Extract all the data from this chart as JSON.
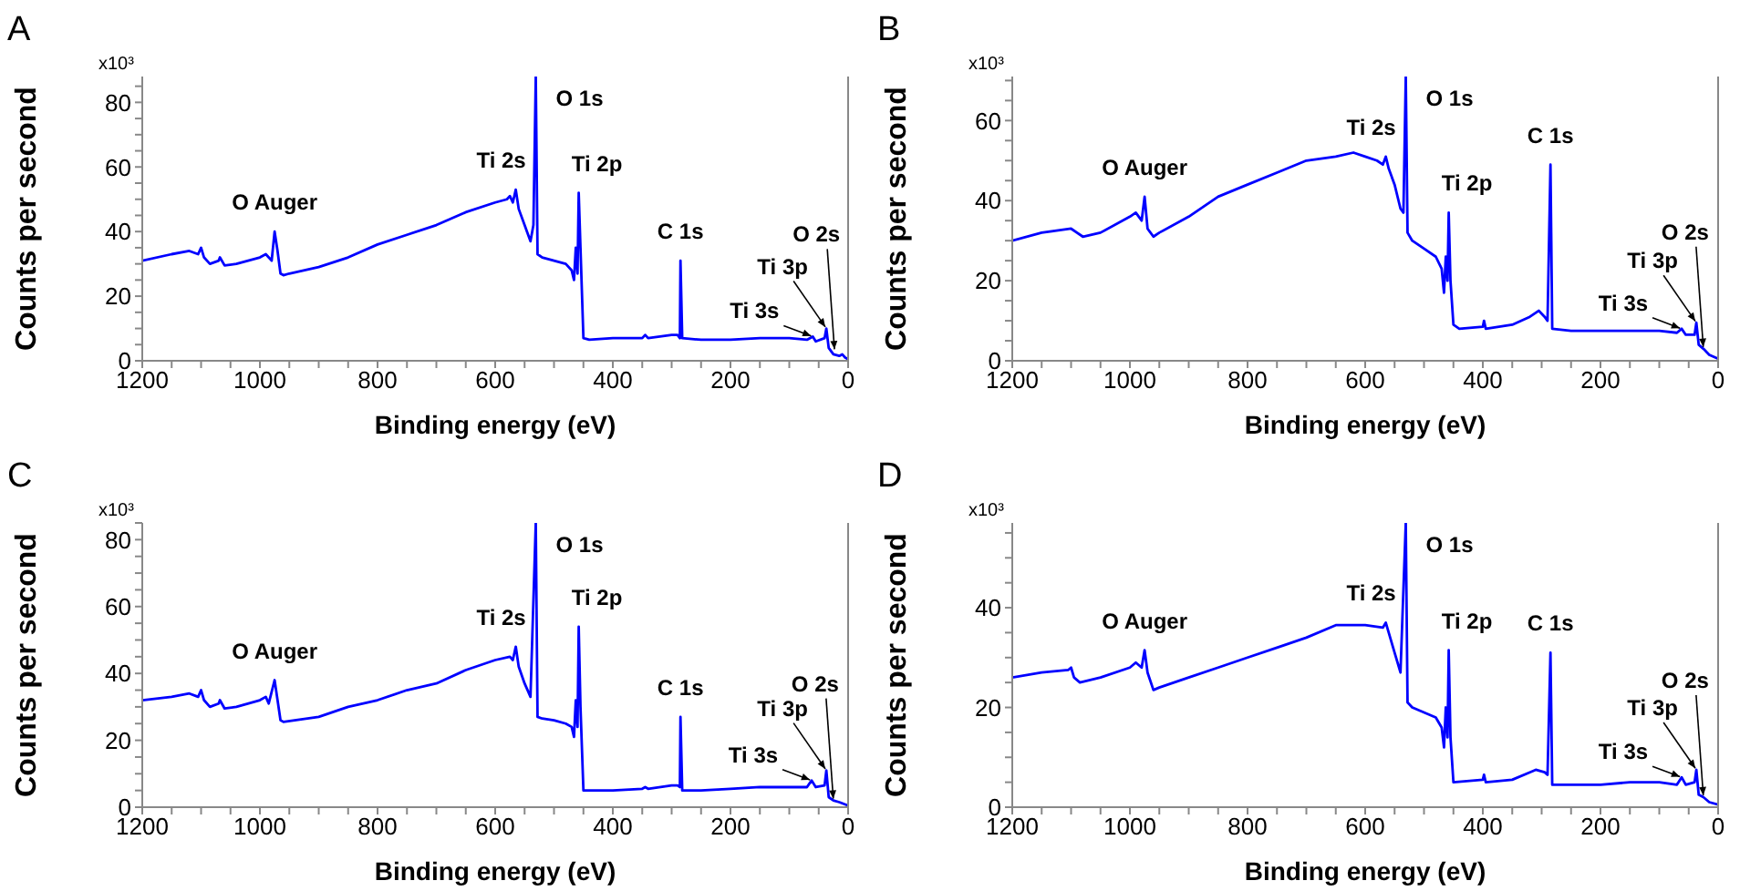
{
  "chart_data": [
    {
      "type": "line",
      "title": "A",
      "xlabel": "Binding energy (eV)",
      "ylabel": "Counts per second",
      "color": "#0000ff",
      "marker": "none",
      "line_style": "solid",
      "xlim": [
        1200,
        0
      ],
      "ylim": [
        0,
        88
      ],
      "xticks": [
        1200,
        {
          "value": 1150,
          "label": null
        },
        {
          "value": 1100,
          "label": null
        },
        {
          "value": 1050,
          "label": null
        },
        1000,
        {
          "value": 950,
          "label": null
        },
        {
          "value": 900,
          "label": null
        },
        {
          "value": 850,
          "label": null
        },
        800,
        {
          "value": 750,
          "label": null
        },
        {
          "value": 700,
          "label": null
        },
        {
          "value": 650,
          "label": null
        },
        600,
        {
          "value": 550,
          "label": null
        },
        {
          "value": 500,
          "label": null
        },
        {
          "value": 450,
          "label": null
        },
        400,
        {
          "value": 350,
          "label": null
        },
        {
          "value": 300,
          "label": null
        },
        {
          "value": 250,
          "label": null
        },
        200,
        {
          "value": 150,
          "label": null
        },
        {
          "value": 100,
          "label": null
        },
        {
          "value": 50,
          "label": null
        },
        0
      ],
      "yticks": [
        0,
        {
          "value": 5,
          "label": null
        },
        {
          "value": 10,
          "label": null
        },
        {
          "value": 15,
          "label": null
        },
        20,
        {
          "value": 25,
          "label": null
        },
        {
          "value": 30,
          "label": null
        },
        {
          "value": 35,
          "label": null
        },
        40,
        {
          "value": 45,
          "label": null
        },
        {
          "value": 50,
          "label": null
        },
        {
          "value": 55,
          "label": null
        },
        60,
        {
          "value": 65,
          "label": null
        },
        {
          "value": 70,
          "label": null
        },
        {
          "value": 75,
          "label": null
        },
        80,
        {
          "value": 85,
          "label": null
        }
      ],
      "x": [
        1200,
        1150,
        1120,
        1105,
        1100,
        1095,
        1085,
        1070,
        1068,
        1060,
        1040,
        1000,
        990,
        985,
        980,
        975,
        970,
        965,
        960,
        950,
        900,
        850,
        800,
        750,
        700,
        650,
        600,
        580,
        575,
        570,
        565,
        560,
        550,
        540,
        535,
        531,
        528,
        520,
        500,
        480,
        470,
        466,
        463,
        460,
        458,
        455,
        450,
        440,
        400,
        350,
        345,
        340,
        300,
        290,
        286,
        285,
        282,
        250,
        200,
        150,
        100,
        70,
        60,
        55,
        40,
        37,
        33,
        25,
        15,
        10,
        5,
        0
      ],
      "values": [
        31,
        33,
        34,
        33,
        35,
        32,
        30,
        31,
        32,
        29.5,
        30,
        32,
        33,
        32,
        31,
        40,
        34,
        27,
        26.5,
        27,
        29,
        32,
        36,
        39,
        42,
        46,
        49,
        50,
        51,
        49,
        53,
        47,
        42,
        37,
        42,
        88,
        33,
        32,
        31,
        30,
        28,
        25,
        35,
        27,
        52,
        35,
        7,
        6.5,
        7,
        7,
        8,
        7,
        8,
        8,
        7,
        31,
        7,
        6.5,
        6.5,
        7,
        7,
        6.5,
        7.5,
        6,
        7,
        10,
        4,
        2,
        1.5,
        2,
        1,
        0.5
      ],
      "annotations": [
        "x10³",
        {
          "text": "O Auger",
          "x": 975,
          "y": 40
        },
        {
          "text": "Ti 2s",
          "x": 565,
          "y": 53
        },
        {
          "text": "O 1s",
          "x": 531,
          "y": 88
        },
        {
          "text": "Ti 2p",
          "x": 458,
          "y": 52
        },
        {
          "text": "C 1s",
          "x": 285,
          "y": 31
        },
        {
          "text": "Ti 3s",
          "x": 60,
          "y": 7.5
        },
        {
          "text": "Ti 3p",
          "x": 37,
          "y": 10
        },
        {
          "text": "O 2s",
          "x": 23,
          "y": 3
        }
      ]
    },
    {
      "type": "line",
      "title": "B",
      "xlabel": "Binding energy (eV)",
      "ylabel": "Counts per second",
      "color": "#0000ff",
      "marker": "none",
      "line_style": "solid",
      "xlim": [
        1200,
        0
      ],
      "ylim": [
        0,
        71
      ],
      "xticks": [
        1200,
        {
          "value": 1150,
          "label": null
        },
        {
          "value": 1100,
          "label": null
        },
        {
          "value": 1050,
          "label": null
        },
        1000,
        {
          "value": 950,
          "label": null
        },
        {
          "value": 900,
          "label": null
        },
        {
          "value": 850,
          "label": null
        },
        800,
        {
          "value": 750,
          "label": null
        },
        {
          "value": 700,
          "label": null
        },
        {
          "value": 650,
          "label": null
        },
        600,
        {
          "value": 550,
          "label": null
        },
        {
          "value": 500,
          "label": null
        },
        {
          "value": 450,
          "label": null
        },
        400,
        {
          "value": 350,
          "label": null
        },
        {
          "value": 300,
          "label": null
        },
        {
          "value": 250,
          "label": null
        },
        200,
        {
          "value": 150,
          "label": null
        },
        {
          "value": 100,
          "label": null
        },
        {
          "value": 50,
          "label": null
        },
        0
      ],
      "yticks": [
        0,
        {
          "value": 5,
          "label": null
        },
        {
          "value": 10,
          "label": null
        },
        {
          "value": 15,
          "label": null
        },
        20,
        {
          "value": 25,
          "label": null
        },
        {
          "value": 30,
          "label": null
        },
        {
          "value": 35,
          "label": null
        },
        40,
        {
          "value": 45,
          "label": null
        },
        {
          "value": 50,
          "label": null
        },
        {
          "value": 55,
          "label": null
        },
        60,
        {
          "value": 65,
          "label": null
        },
        {
          "value": 70,
          "label": null
        }
      ],
      "x": [
        1200,
        1150,
        1100,
        1080,
        1050,
        1000,
        990,
        980,
        975,
        970,
        960,
        950,
        900,
        850,
        800,
        750,
        700,
        650,
        620,
        600,
        580,
        570,
        565,
        560,
        550,
        540,
        535,
        531,
        528,
        520,
        500,
        480,
        470,
        466,
        463,
        460,
        458,
        455,
        450,
        440,
        400,
        398,
        395,
        350,
        320,
        305,
        295,
        290,
        285,
        282,
        250,
        200,
        150,
        100,
        70,
        62,
        55,
        40,
        37,
        33,
        25,
        15,
        0
      ],
      "values": [
        30,
        32,
        33,
        31,
        32,
        36,
        37,
        35,
        41,
        33,
        31,
        32,
        36,
        41,
        44,
        47,
        50,
        51,
        52,
        51,
        50,
        49,
        51,
        48,
        44,
        38,
        37,
        71,
        32,
        30,
        28,
        26,
        23,
        17,
        26,
        20,
        37,
        20,
        9,
        8,
        8.5,
        10,
        8,
        9,
        11,
        12.5,
        11,
        10,
        49,
        8,
        7.5,
        7.5,
        7.5,
        7.5,
        7,
        8,
        6.5,
        6.5,
        9.5,
        4,
        3,
        1.5,
        0.5
      ],
      "annotations": [
        "x10³",
        {
          "text": "O Auger",
          "x": 975,
          "y": 41
        },
        {
          "text": "Ti 2s",
          "x": 565,
          "y": 51
        },
        {
          "text": "O 1s",
          "x": 531,
          "y": 71
        },
        {
          "text": "Ti 2p",
          "x": 458,
          "y": 37
        },
        {
          "text": "C 1s",
          "x": 285,
          "y": 49
        },
        {
          "text": "Ti 3s",
          "x": 62,
          "y": 8
        },
        {
          "text": "Ti 3p",
          "x": 37,
          "y": 9.5
        },
        {
          "text": "O 2s",
          "x": 25,
          "y": 3
        }
      ]
    },
    {
      "type": "line",
      "title": "C",
      "xlabel": "Binding energy (eV)",
      "ylabel": "Counts per second",
      "color": "#0000ff",
      "marker": "none",
      "line_style": "solid",
      "xlim": [
        1200,
        0
      ],
      "ylim": [
        0,
        85
      ],
      "xticks": [
        1200,
        {
          "value": 1150,
          "label": null
        },
        {
          "value": 1100,
          "label": null
        },
        {
          "value": 1050,
          "label": null
        },
        1000,
        {
          "value": 950,
          "label": null
        },
        {
          "value": 900,
          "label": null
        },
        {
          "value": 850,
          "label": null
        },
        800,
        {
          "value": 750,
          "label": null
        },
        {
          "value": 700,
          "label": null
        },
        {
          "value": 650,
          "label": null
        },
        600,
        {
          "value": 550,
          "label": null
        },
        {
          "value": 500,
          "label": null
        },
        {
          "value": 450,
          "label": null
        },
        400,
        {
          "value": 350,
          "label": null
        },
        {
          "value": 300,
          "label": null
        },
        {
          "value": 250,
          "label": null
        },
        200,
        {
          "value": 150,
          "label": null
        },
        {
          "value": 100,
          "label": null
        },
        {
          "value": 50,
          "label": null
        },
        0
      ],
      "yticks": [
        0,
        {
          "value": 5,
          "label": null
        },
        {
          "value": 10,
          "label": null
        },
        {
          "value": 15,
          "label": null
        },
        20,
        {
          "value": 25,
          "label": null
        },
        {
          "value": 30,
          "label": null
        },
        {
          "value": 35,
          "label": null
        },
        40,
        {
          "value": 45,
          "label": null
        },
        {
          "value": 50,
          "label": null
        },
        {
          "value": 55,
          "label": null
        },
        60,
        {
          "value": 65,
          "label": null
        },
        {
          "value": 70,
          "label": null
        },
        {
          "value": 75,
          "label": null
        },
        80,
        {
          "value": 85,
          "label": null
        }
      ],
      "x": [
        1200,
        1150,
        1120,
        1105,
        1100,
        1095,
        1085,
        1070,
        1068,
        1060,
        1040,
        1000,
        990,
        985,
        975,
        970,
        965,
        960,
        900,
        850,
        800,
        750,
        700,
        650,
        600,
        575,
        570,
        565,
        560,
        550,
        540,
        531,
        528,
        520,
        500,
        480,
        470,
        466,
        463,
        460,
        458,
        455,
        450,
        400,
        350,
        345,
        340,
        300,
        290,
        286,
        285,
        282,
        250,
        200,
        150,
        100,
        70,
        62,
        55,
        40,
        37,
        33,
        25,
        15,
        0
      ],
      "values": [
        32,
        33,
        34,
        33,
        35,
        32,
        30,
        31,
        32,
        29.5,
        30,
        32,
        33,
        31,
        38,
        32,
        26,
        25.5,
        27,
        30,
        32,
        35,
        37,
        41,
        44,
        45,
        44,
        48,
        42,
        37,
        33,
        85,
        27,
        26.5,
        26,
        25,
        24,
        21,
        32,
        24,
        54,
        30,
        5,
        5,
        5.5,
        6,
        5.5,
        6.5,
        6.5,
        6,
        27,
        5,
        5,
        5.5,
        6,
        6,
        6,
        8,
        6,
        6.5,
        11,
        3,
        2,
        1.5,
        0.5
      ],
      "annotations": [
        "x10³",
        {
          "text": "O Auger",
          "x": 975,
          "y": 38
        },
        {
          "text": "Ti 2s",
          "x": 565,
          "y": 48
        },
        {
          "text": "O 1s",
          "x": 531,
          "y": 85
        },
        {
          "text": "Ti 2p",
          "x": 458,
          "y": 54
        },
        {
          "text": "C 1s",
          "x": 285,
          "y": 27
        },
        {
          "text": "Ti 3s",
          "x": 62,
          "y": 8
        },
        {
          "text": "Ti 3p",
          "x": 37,
          "y": 11
        },
        {
          "text": "O 2s",
          "x": 25,
          "y": 2
        }
      ]
    },
    {
      "type": "line",
      "title": "D",
      "xlabel": "Binding energy (eV)",
      "ylabel": "Counts per second",
      "color": "#0000ff",
      "marker": "none",
      "line_style": "solid",
      "xlim": [
        1200,
        0
      ],
      "ylim": [
        0,
        57
      ],
      "xticks": [
        1200,
        {
          "value": 1150,
          "label": null
        },
        {
          "value": 1100,
          "label": null
        },
        {
          "value": 1050,
          "label": null
        },
        1000,
        {
          "value": 950,
          "label": null
        },
        {
          "value": 900,
          "label": null
        },
        {
          "value": 850,
          "label": null
        },
        800,
        {
          "value": 750,
          "label": null
        },
        {
          "value": 700,
          "label": null
        },
        {
          "value": 650,
          "label": null
        },
        600,
        {
          "value": 550,
          "label": null
        },
        {
          "value": 500,
          "label": null
        },
        {
          "value": 450,
          "label": null
        },
        400,
        {
          "value": 350,
          "label": null
        },
        {
          "value": 300,
          "label": null
        },
        {
          "value": 250,
          "label": null
        },
        200,
        {
          "value": 150,
          "label": null
        },
        {
          "value": 100,
          "label": null
        },
        {
          "value": 50,
          "label": null
        },
        0
      ],
      "yticks": [
        0,
        {
          "value": 5,
          "label": null
        },
        {
          "value": 10,
          "label": null
        },
        {
          "value": 15,
          "label": null
        },
        20,
        {
          "value": 25,
          "label": null
        },
        {
          "value": 30,
          "label": null
        },
        {
          "value": 35,
          "label": null
        },
        40,
        {
          "value": 45,
          "label": null
        },
        {
          "value": 50,
          "label": null
        },
        {
          "value": 55,
          "label": null
        }
      ],
      "x": [
        1200,
        1150,
        1105,
        1100,
        1095,
        1085,
        1050,
        1000,
        990,
        980,
        975,
        970,
        960,
        950,
        900,
        850,
        800,
        750,
        700,
        650,
        600,
        570,
        565,
        560,
        550,
        540,
        531,
        528,
        520,
        500,
        480,
        470,
        466,
        463,
        460,
        458,
        455,
        450,
        400,
        398,
        395,
        350,
        320,
        310,
        295,
        290,
        285,
        282,
        250,
        200,
        150,
        100,
        70,
        62,
        55,
        40,
        37,
        33,
        25,
        15,
        0
      ],
      "values": [
        26,
        27,
        27.5,
        28,
        26,
        25,
        26,
        28,
        29,
        28,
        31.5,
        27,
        23.5,
        24,
        26,
        28,
        30,
        32,
        34,
        36.5,
        36.5,
        36,
        37,
        35,
        31,
        27,
        57,
        21,
        20,
        19,
        18,
        16,
        12,
        20,
        14,
        31.5,
        14,
        5,
        5.5,
        6.5,
        5,
        5.5,
        7,
        7.5,
        7,
        6.5,
        31,
        4.5,
        4.5,
        4.5,
        5,
        5,
        4.5,
        6,
        4.5,
        5,
        7.5,
        2.5,
        2,
        1,
        0.5
      ],
      "annotations": [
        "x10³",
        {
          "text": "O Auger",
          "x": 975,
          "y": 31.5
        },
        {
          "text": "Ti 2s",
          "x": 565,
          "y": 37
        },
        {
          "text": "O 1s",
          "x": 531,
          "y": 57
        },
        {
          "text": "Ti 2p",
          "x": 458,
          "y": 31.5
        },
        {
          "text": "C 1s",
          "x": 285,
          "y": 31
        },
        {
          "text": "Ti 3s",
          "x": 62,
          "y": 6
        },
        {
          "text": "Ti 3p",
          "x": 37,
          "y": 7.5
        },
        {
          "text": "O 2s",
          "x": 25,
          "y": 2
        }
      ]
    }
  ]
}
